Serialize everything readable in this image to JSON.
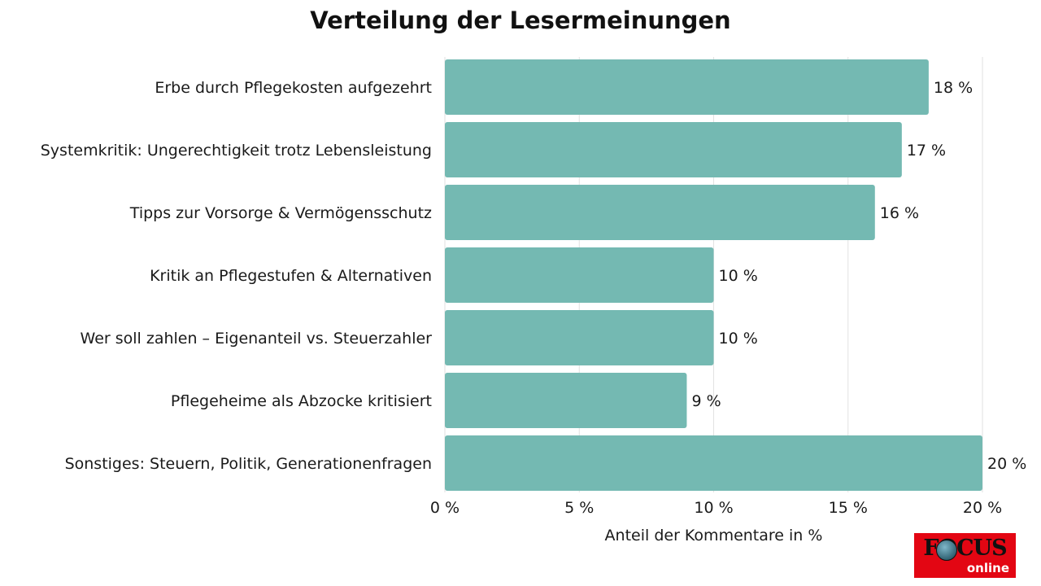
{
  "chart_data": {
    "type": "bar",
    "orientation": "horizontal",
    "title": "Verteilung der Lesermeinungen",
    "xlabel": "Anteil der Kommentare in %",
    "ylabel": "",
    "categories": [
      "Erbe durch Pflegekosten aufgezehrt",
      "Systemkritik: Ungerechtigkeit trotz Lebensleistung",
      "Tipps zur Vorsorge & Vermögensschutz",
      "Kritik an Pflegestufen & Alternativen",
      "Wer soll zahlen – Eigenanteil vs. Steuerzahler",
      "Pflegeheime als Abzocke kritisiert",
      "Sonstiges: Steuern, Politik, Generationenfragen"
    ],
    "values": [
      18,
      17,
      16,
      10,
      10,
      9,
      20
    ],
    "value_labels": [
      "18 %",
      "17 %",
      "16 %",
      "10 %",
      "10 %",
      "9 %",
      "20 %"
    ],
    "xlim": [
      0,
      20
    ],
    "ticks": [
      0,
      5,
      10,
      15,
      20
    ],
    "tick_labels": [
      "0 %",
      "5 %",
      "10 %",
      "15 %",
      "20 %"
    ],
    "grid": true,
    "legend": "none",
    "bar_color": "#74b9b2"
  },
  "logo": {
    "name": "focus-online-logo",
    "text": "FOCUS",
    "subtext": "online",
    "color": "#e30613"
  }
}
